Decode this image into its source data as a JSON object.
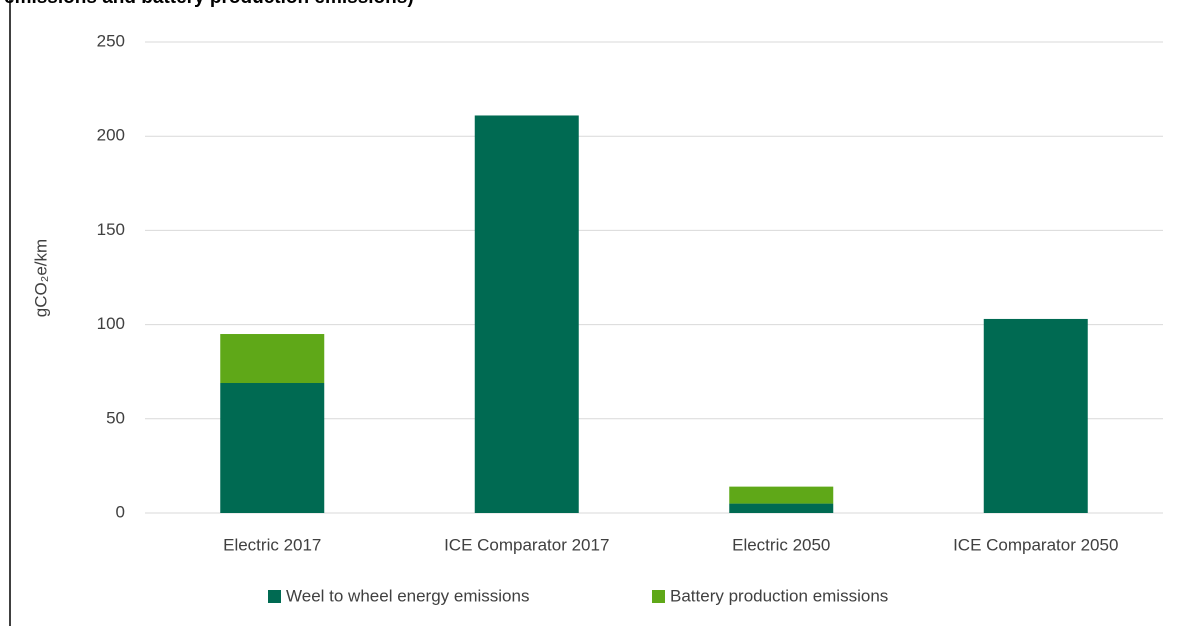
{
  "chart_data": {
    "type": "stacked_bar",
    "title": "emissions and battery production emissions)",
    "y_label": "gCO₂e/km",
    "categories": [
      "Electric 2017",
      "ICE Comparator 2017",
      "Electric 2050",
      "ICE Comparator 2050"
    ],
    "series": [
      {
        "name": "Weel to wheel energy emissions",
        "color": "#006a52",
        "values": [
          69,
          211,
          5,
          103
        ]
      },
      {
        "name": "Battery production emissions",
        "color": "#5fa818",
        "values": [
          26,
          0,
          9,
          0
        ]
      }
    ],
    "ylim": [
      0,
      250
    ],
    "yticks": [
      0,
      50,
      100,
      150,
      200,
      250
    ],
    "grid": true,
    "legend": "bottom"
  }
}
